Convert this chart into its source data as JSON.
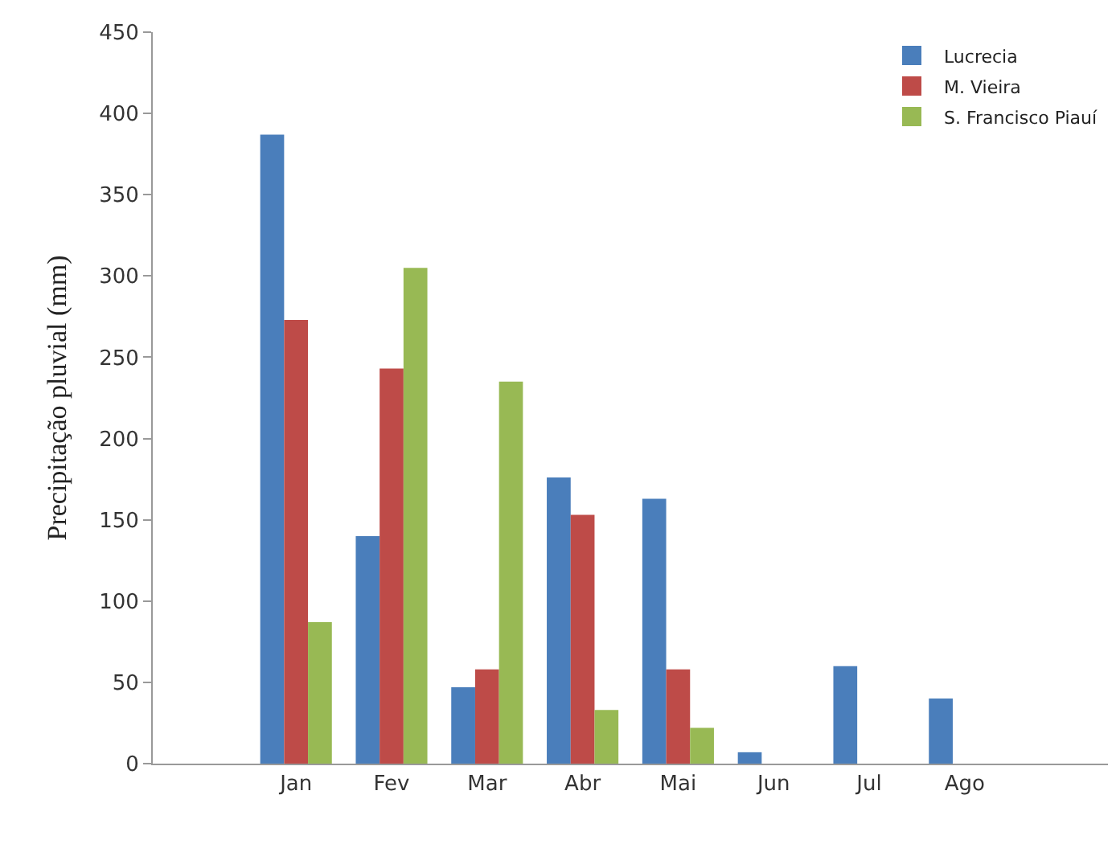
{
  "chart_data": {
    "type": "bar",
    "ylabel": "Precipitação pluvial (mm)",
    "categories": [
      null,
      "Jan",
      "Fev",
      "Mar",
      "Abr",
      "Mai",
      "Jun",
      "Jul",
      "Ago",
      null
    ],
    "series": [
      {
        "name": "Lucrecia",
        "color": "#4a7ebb",
        "values": [
          null,
          387,
          140,
          47,
          176,
          163,
          7,
          60,
          40,
          null
        ]
      },
      {
        "name": "M. Vieira",
        "color": "#be4b48",
        "values": [
          null,
          273,
          243,
          58,
          153,
          58,
          null,
          null,
          null,
          null
        ]
      },
      {
        "name": "S. Francisco Piauí",
        "color": "#98b954",
        "values": [
          null,
          87,
          305,
          235,
          33,
          22,
          null,
          null,
          null,
          null
        ]
      }
    ],
    "ylim": [
      0,
      450
    ],
    "yticks": [
      0,
      50,
      100,
      150,
      200,
      250,
      300,
      350,
      400,
      450
    ],
    "legend": "top right"
  }
}
